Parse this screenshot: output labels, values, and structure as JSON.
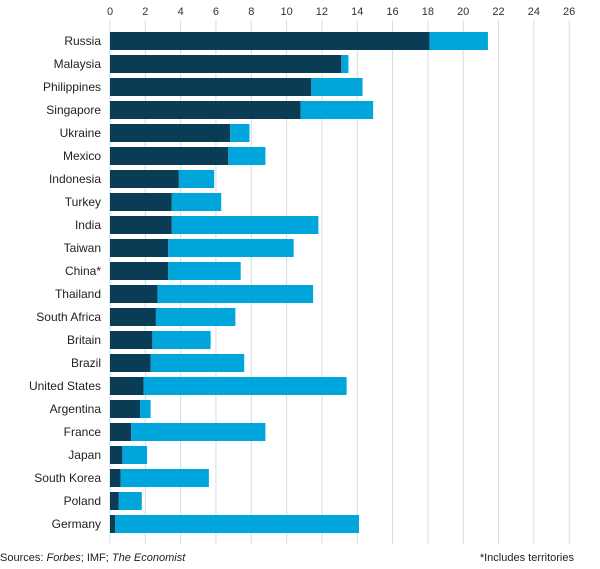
{
  "chart_data": {
    "type": "bar",
    "orientation": "horizontal",
    "stacked": true,
    "xlim": [
      0,
      26
    ],
    "xticks": [
      0,
      2,
      4,
      6,
      8,
      10,
      12,
      14,
      16,
      18,
      20,
      22,
      24,
      26
    ],
    "grid": true,
    "categories": [
      "Russia",
      "Malaysia",
      "Philippines",
      "Singapore",
      "Ukraine",
      "Mexico",
      "Indonesia",
      "Turkey",
      "India",
      "Taiwan",
      "China*",
      "Thailand",
      "South Africa",
      "Britain",
      "Brazil",
      "United States",
      "Argentina",
      "France",
      "Japan",
      "South Korea",
      "Poland",
      "Germany"
    ],
    "series": [
      {
        "name": "dark",
        "color": "#0b3c55",
        "values": [
          18.1,
          13.1,
          11.4,
          10.8,
          6.8,
          6.7,
          3.9,
          3.5,
          3.5,
          3.3,
          3.3,
          2.7,
          2.6,
          2.4,
          2.3,
          1.9,
          1.7,
          1.2,
          0.7,
          0.6,
          0.5,
          0.3
        ]
      },
      {
        "name": "light",
        "color": "#00a6db",
        "values": [
          3.3,
          0.4,
          2.9,
          4.1,
          1.1,
          2.1,
          2.0,
          2.8,
          8.3,
          7.1,
          4.1,
          8.8,
          4.5,
          3.3,
          5.3,
          11.5,
          0.6,
          7.6,
          1.4,
          5.0,
          1.3,
          13.8
        ]
      }
    ]
  },
  "footer": {
    "sources_prefix": "Sources: ",
    "sources_forbes": "Forbes",
    "sources_mid": "; IMF; ",
    "sources_economist": "The Economist",
    "footnote": "*Includes territories"
  }
}
